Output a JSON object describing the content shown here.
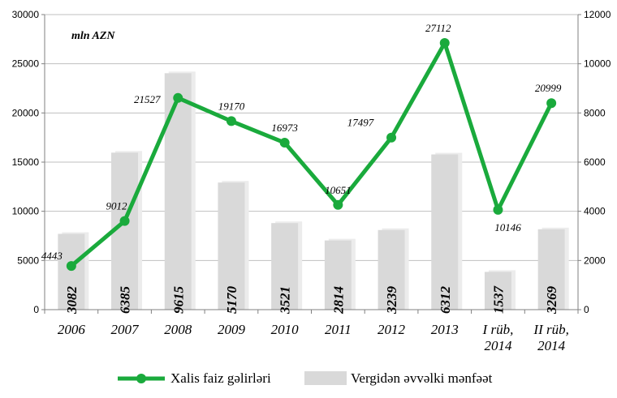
{
  "chart_data": {
    "type": "bar+line",
    "unit_label": "mln AZN",
    "categories": [
      [
        "2006"
      ],
      [
        "2007"
      ],
      [
        "2008"
      ],
      [
        "2009"
      ],
      [
        "2010"
      ],
      [
        "2011"
      ],
      [
        "2012"
      ],
      [
        "2013"
      ],
      [
        "I rüb,",
        "2014"
      ],
      [
        "II rüb,",
        "2014"
      ]
    ],
    "series": [
      {
        "name": "Xalis faiz gəlirləri",
        "type": "line",
        "axis": "left",
        "color": "#1aaa3c",
        "values": [
          4443,
          9012,
          21527,
          19170,
          16973,
          10651,
          17497,
          27112,
          10146,
          20999
        ]
      },
      {
        "name": "Vergidən əvvəlki mənfəət",
        "type": "bar",
        "axis": "right",
        "color": "#d9d9d9",
        "values": [
          3082,
          6385,
          9615,
          5170,
          3521,
          2814,
          3239,
          6312,
          1537,
          3269
        ]
      }
    ],
    "left_axis": {
      "min": 0,
      "max": 30000,
      "ticks": [
        0,
        5000,
        10000,
        15000,
        20000,
        25000,
        30000
      ]
    },
    "right_axis": {
      "min": 0,
      "max": 12000,
      "ticks": [
        0,
        2000,
        4000,
        6000,
        8000,
        10000,
        12000
      ]
    },
    "grid": true,
    "legend_position": "bottom"
  }
}
